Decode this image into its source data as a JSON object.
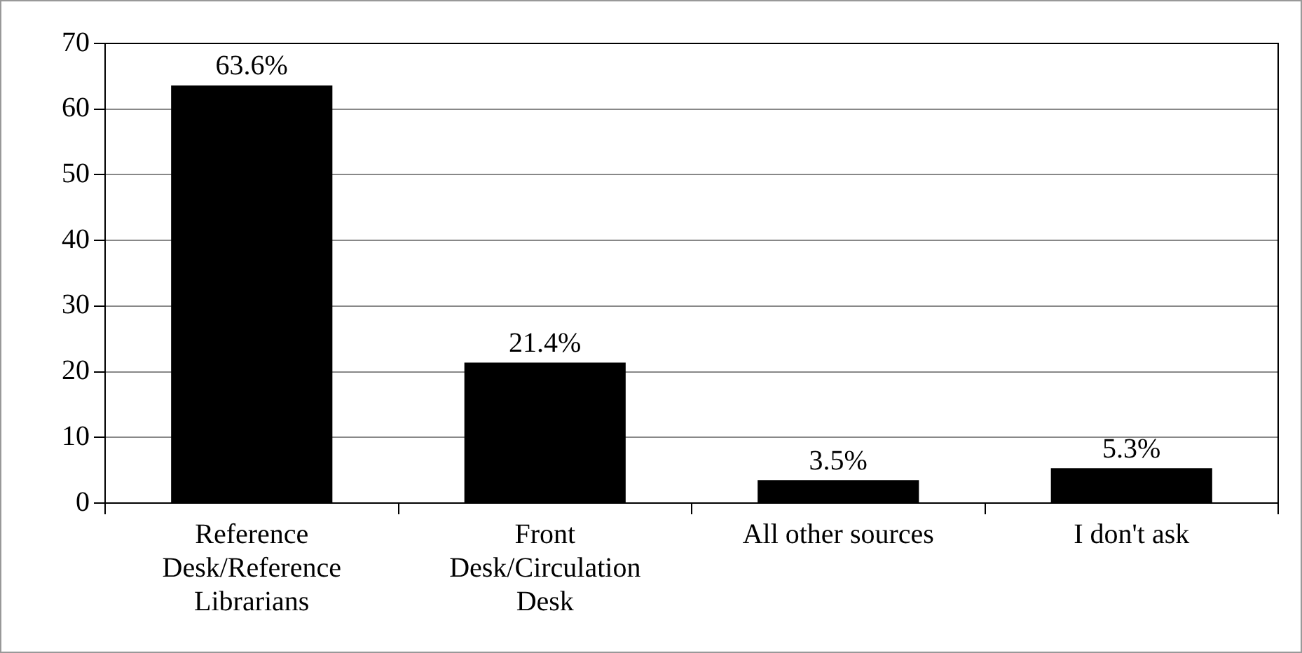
{
  "chart_data": {
    "type": "bar",
    "categories": [
      "Reference Desk/Reference Librarians",
      "Front Desk/Circulation Desk",
      "All other sources",
      "I don't ask"
    ],
    "values": [
      63.6,
      21.4,
      3.5,
      5.3
    ],
    "value_labels": [
      "63.6%",
      "21.4%",
      "3.5%",
      "5.3%"
    ],
    "color": "#000000",
    "ylim": [
      0,
      70
    ],
    "yticks": [
      0,
      10,
      20,
      30,
      40,
      50,
      60,
      70
    ],
    "grid": "y",
    "legend": false
  }
}
